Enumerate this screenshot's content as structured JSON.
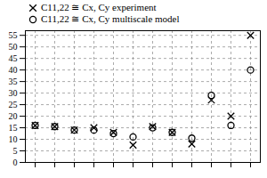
{
  "chart_data": {
    "type": "scatter",
    "categories": [
      null,
      null,
      null,
      null,
      null,
      null,
      null,
      null,
      null,
      null,
      null,
      null
    ],
    "series": [
      {
        "name": "C11,22 ≅ Cx, Cy experiment",
        "color": "#000000",
        "marker": "x",
        "values": [
          16,
          15.5,
          14,
          15,
          13,
          7.5,
          15.5,
          13,
          8,
          27,
          20,
          55
        ]
      },
      {
        "name": "C11,22 ≅ Cx, Cy multiscale model",
        "color": "#000000",
        "marker": "circle",
        "values": [
          16,
          15.5,
          14,
          14,
          12.5,
          11,
          15,
          13,
          10.5,
          29,
          16,
          40
        ]
      }
    ],
    "ylim": [
      0,
      57
    ],
    "yticks": [
      0,
      5,
      10,
      15,
      20,
      25,
      30,
      35,
      40,
      45,
      50,
      55
    ],
    "grid": true,
    "legend": "top"
  }
}
